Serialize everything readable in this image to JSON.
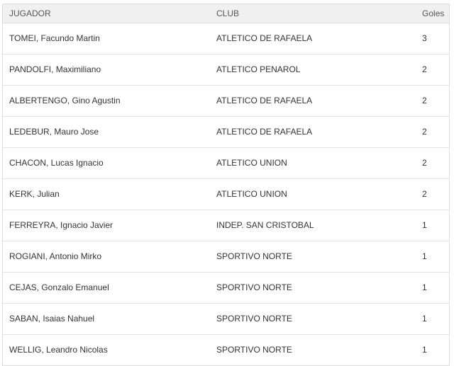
{
  "table": {
    "headers": {
      "player": "JUGADOR",
      "club": "CLUB",
      "goals": "Goles"
    },
    "rows": [
      {
        "player": "TOMEI, Facundo Martin",
        "club": "ATLETICO DE RAFAELA",
        "goals": "3"
      },
      {
        "player": "PANDOLFI, Maximiliano",
        "club": "ATLETICO PENAROL",
        "goals": "2"
      },
      {
        "player": "ALBERTENGO, Gino Agustin",
        "club": "ATLETICO DE RAFAELA",
        "goals": "2"
      },
      {
        "player": "LEDEBUR, Mauro Jose",
        "club": "ATLETICO DE RAFAELA",
        "goals": "2"
      },
      {
        "player": "CHACON, Lucas Ignacio",
        "club": "ATLETICO UNION",
        "goals": "2"
      },
      {
        "player": "KERK, Julian",
        "club": "ATLETICO UNION",
        "goals": "2"
      },
      {
        "player": "FERREYRA, Ignacio Javier",
        "club": "INDEP. SAN CRISTOBAL",
        "goals": "1"
      },
      {
        "player": "ROGIANI, Antonio Mirko",
        "club": "SPORTIVO NORTE",
        "goals": "1"
      },
      {
        "player": "CEJAS, Gonzalo Emanuel",
        "club": "SPORTIVO NORTE",
        "goals": "1"
      },
      {
        "player": "SABAN, Isaias Nahuel",
        "club": "SPORTIVO NORTE",
        "goals": "1"
      },
      {
        "player": "WELLIG, Leandro Nicolas",
        "club": "SPORTIVO NORTE",
        "goals": "1"
      }
    ]
  }
}
